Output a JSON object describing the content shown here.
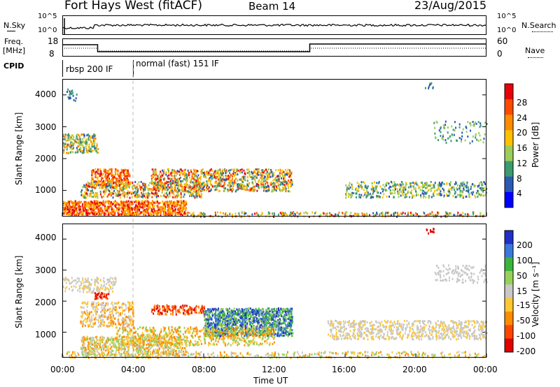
{
  "header": {
    "site": "Fort Hays West (fitACF)",
    "beam": "Beam 14",
    "date": "23/Aug/2015"
  },
  "top_panels": {
    "nsky_label": "N.Sky",
    "nsky_ticks": [
      "10^5",
      "10^0"
    ],
    "nsearch_label": "N.Search",
    "freq_label_line1": "Freq.",
    "freq_label_line2": "[MHz]",
    "freq_ticks": [
      "18",
      "8"
    ],
    "nave_ticks": [
      "60",
      "0"
    ],
    "nave_label": "Nave",
    "cpid_label": "CPID",
    "cpid_segments": [
      "rbsp 200 IF",
      "normal (fast) 151 IF"
    ]
  },
  "chart_data": [
    {
      "type": "heatmap",
      "title": "",
      "ylabel": "Slant Range [km]",
      "yticks": [
        "4000",
        "3000",
        "2000",
        "1000"
      ],
      "ylim": [
        180,
        4500
      ],
      "colorbar_label": "Power [dB]",
      "colorbar_ticks": [
        "28",
        "24",
        "20",
        "16",
        "12",
        "8",
        "4"
      ],
      "colorbar_colors": [
        "#e8000b",
        "#ff4b00",
        "#ff8c00",
        "#ffc000",
        "#9bcd5a",
        "#3c9b6e",
        "#2a5ab4",
        "#0000ff"
      ]
    },
    {
      "type": "heatmap",
      "title": "",
      "ylabel": "Slant Range [km]",
      "yticks": [
        "4000",
        "3000",
        "2000",
        "1000"
      ],
      "ylim": [
        180,
        4500
      ],
      "colorbar_label": "Velocity [m s⁻¹]",
      "colorbar_ticks": [
        "200",
        "100",
        "50",
        "15",
        "-15",
        "-50",
        "-100",
        "-200"
      ],
      "colorbar_colors": [
        "#2030c8",
        "#3c78dc",
        "#3cb43c",
        "#96d25a",
        "#c8c8c8",
        "#ffc832",
        "#ff8c00",
        "#ff4600",
        "#e00000"
      ]
    }
  ],
  "xaxis": {
    "label": "Time UT",
    "ticks": [
      "00:00",
      "04:00",
      "08:00",
      "12:00",
      "16:00",
      "20:00",
      "00:00"
    ]
  }
}
